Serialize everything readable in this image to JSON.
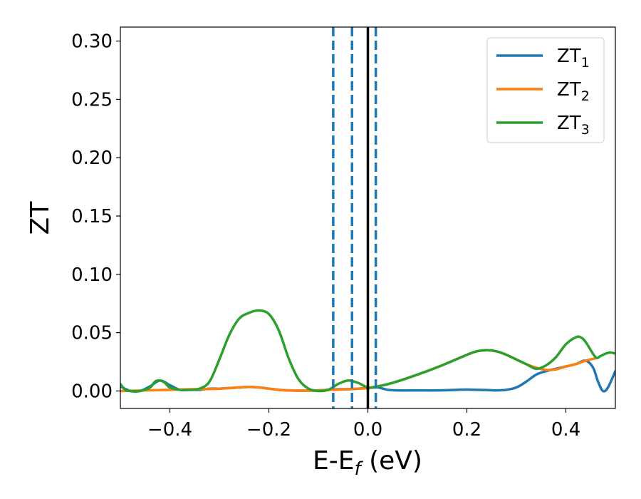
{
  "chart_data": {
    "type": "line",
    "xlabel_main": "E-E",
    "xlabel_sub": "f",
    "xlabel_unit": " (eV)",
    "ylabel": "ZT",
    "xlim": [
      -0.5,
      0.5
    ],
    "ylim": [
      -0.015,
      0.312
    ],
    "x_ticks": [
      -0.4,
      -0.2,
      0.0,
      0.2,
      0.4
    ],
    "x_tick_labels": [
      "−0.4",
      "−0.2",
      "0.0",
      "0.2",
      "0.4"
    ],
    "y_ticks": [
      0.0,
      0.05,
      0.1,
      0.15,
      0.2,
      0.25,
      0.3
    ],
    "y_tick_labels": [
      "0.00",
      "0.05",
      "0.10",
      "0.15",
      "0.20",
      "0.25",
      "0.30"
    ],
    "grid": false,
    "legend_position": "top-right",
    "vertical_lines": [
      {
        "x": -0.07,
        "style": "dashed",
        "color": "#1f77b4"
      },
      {
        "x": -0.032,
        "style": "dashed",
        "color": "#1f77b4"
      },
      {
        "x": 0.0,
        "style": "solid",
        "color": "#000000"
      },
      {
        "x": 0.016,
        "style": "dashed",
        "color": "#1f77b4"
      }
    ],
    "series": [
      {
        "name": "ZT",
        "subscript": "1",
        "color": "#1f77b4",
        "points": [
          [
            -0.5,
            0.004
          ],
          [
            -0.48,
            0.0
          ],
          [
            -0.46,
            0.0
          ],
          [
            -0.44,
            0.004
          ],
          [
            -0.42,
            0.009
          ],
          [
            -0.4,
            0.005
          ],
          [
            -0.38,
            0.001
          ],
          [
            -0.36,
            0.001
          ],
          [
            -0.34,
            0.001
          ],
          [
            -0.32,
            0.002
          ],
          [
            -0.3,
            0.002
          ],
          [
            -0.28,
            0.0025
          ],
          [
            -0.26,
            0.003
          ],
          [
            -0.24,
            0.0035
          ],
          [
            -0.22,
            0.003
          ],
          [
            -0.2,
            0.002
          ],
          [
            -0.18,
            0.001
          ],
          [
            -0.16,
            0.0005
          ],
          [
            -0.14,
            0.0003
          ],
          [
            -0.12,
            0.0003
          ],
          [
            -0.1,
            0.0005
          ],
          [
            -0.08,
            0.001
          ],
          [
            -0.06,
            0.0015
          ],
          [
            -0.04,
            0.0015
          ],
          [
            -0.02,
            0.002
          ],
          [
            0.0,
            0.0025
          ],
          [
            0.02,
            0.003
          ],
          [
            0.04,
            0.001
          ],
          [
            0.06,
            0.0005
          ],
          [
            0.1,
            0.0005
          ],
          [
            0.14,
            0.0005
          ],
          [
            0.18,
            0.001
          ],
          [
            0.2,
            0.0012
          ],
          [
            0.22,
            0.001
          ],
          [
            0.24,
            0.0008
          ],
          [
            0.26,
            0.0005
          ],
          [
            0.28,
            0.001
          ],
          [
            0.3,
            0.003
          ],
          [
            0.32,
            0.008
          ],
          [
            0.34,
            0.014
          ],
          [
            0.36,
            0.017
          ],
          [
            0.38,
            0.019
          ],
          [
            0.4,
            0.021
          ],
          [
            0.42,
            0.023
          ],
          [
            0.44,
            0.026
          ],
          [
            0.455,
            0.02
          ],
          [
            0.465,
            0.008
          ],
          [
            0.475,
            0.0
          ],
          [
            0.485,
            0.003
          ],
          [
            0.5,
            0.017
          ]
        ]
      },
      {
        "name": "ZT",
        "subscript": "2",
        "color": "#ff7f0e",
        "points": [
          [
            -0.5,
            0.0
          ],
          [
            -0.45,
            0.0005
          ],
          [
            -0.4,
            0.001
          ],
          [
            -0.35,
            0.0015
          ],
          [
            -0.3,
            0.002
          ],
          [
            -0.26,
            0.003
          ],
          [
            -0.24,
            0.0035
          ],
          [
            -0.22,
            0.003
          ],
          [
            -0.2,
            0.002
          ],
          [
            -0.18,
            0.001
          ],
          [
            -0.16,
            0.0005
          ],
          [
            -0.14,
            0.0003
          ],
          [
            -0.12,
            0.0003
          ],
          [
            -0.1,
            0.0005
          ],
          [
            -0.08,
            0.001
          ],
          [
            -0.06,
            0.0012
          ],
          [
            -0.04,
            0.0015
          ],
          [
            -0.02,
            0.002
          ],
          [
            0.0,
            0.0025
          ],
          [
            0.02,
            0.004
          ],
          [
            0.05,
            0.007
          ],
          [
            0.1,
            0.014
          ],
          [
            0.15,
            0.022
          ],
          [
            0.2,
            0.031
          ],
          [
            0.22,
            0.034
          ],
          [
            0.24,
            0.035
          ],
          [
            0.26,
            0.034
          ],
          [
            0.28,
            0.031
          ],
          [
            0.3,
            0.027
          ],
          [
            0.32,
            0.023
          ],
          [
            0.34,
            0.02
          ],
          [
            0.36,
            0.018
          ],
          [
            0.38,
            0.0185
          ],
          [
            0.4,
            0.021
          ],
          [
            0.42,
            0.023
          ],
          [
            0.44,
            0.026
          ],
          [
            0.46,
            0.028
          ]
        ]
      },
      {
        "name": "ZT",
        "subscript": "3",
        "color": "#2ca02c",
        "points": [
          [
            -0.5,
            0.006
          ],
          [
            -0.49,
            0.001
          ],
          [
            -0.48,
            0.0
          ],
          [
            -0.46,
            0.0
          ],
          [
            -0.44,
            0.003
          ],
          [
            -0.43,
            0.008
          ],
          [
            -0.42,
            0.009
          ],
          [
            -0.41,
            0.007
          ],
          [
            -0.4,
            0.003
          ],
          [
            -0.38,
            0.001
          ],
          [
            -0.36,
            0.001
          ],
          [
            -0.34,
            0.002
          ],
          [
            -0.32,
            0.008
          ],
          [
            -0.3,
            0.027
          ],
          [
            -0.28,
            0.048
          ],
          [
            -0.26,
            0.062
          ],
          [
            -0.24,
            0.067
          ],
          [
            -0.22,
            0.069
          ],
          [
            -0.2,
            0.066
          ],
          [
            -0.18,
            0.052
          ],
          [
            -0.16,
            0.028
          ],
          [
            -0.14,
            0.01
          ],
          [
            -0.12,
            0.002
          ],
          [
            -0.1,
            0.0
          ],
          [
            -0.08,
            0.001
          ],
          [
            -0.06,
            0.006
          ],
          [
            -0.04,
            0.009
          ],
          [
            -0.02,
            0.007
          ],
          [
            0.0,
            0.003
          ],
          [
            0.02,
            0.004
          ],
          [
            0.05,
            0.007
          ],
          [
            0.1,
            0.014
          ],
          [
            0.15,
            0.022
          ],
          [
            0.2,
            0.031
          ],
          [
            0.22,
            0.034
          ],
          [
            0.24,
            0.035
          ],
          [
            0.26,
            0.034
          ],
          [
            0.28,
            0.031
          ],
          [
            0.3,
            0.027
          ],
          [
            0.32,
            0.023
          ],
          [
            0.34,
            0.019
          ],
          [
            0.36,
            0.022
          ],
          [
            0.38,
            0.029
          ],
          [
            0.4,
            0.04
          ],
          [
            0.42,
            0.046
          ],
          [
            0.43,
            0.046
          ],
          [
            0.44,
            0.042
          ],
          [
            0.46,
            0.029
          ],
          [
            0.47,
            0.03
          ],
          [
            0.48,
            0.032
          ],
          [
            0.49,
            0.033
          ],
          [
            0.5,
            0.032
          ]
        ]
      }
    ]
  }
}
